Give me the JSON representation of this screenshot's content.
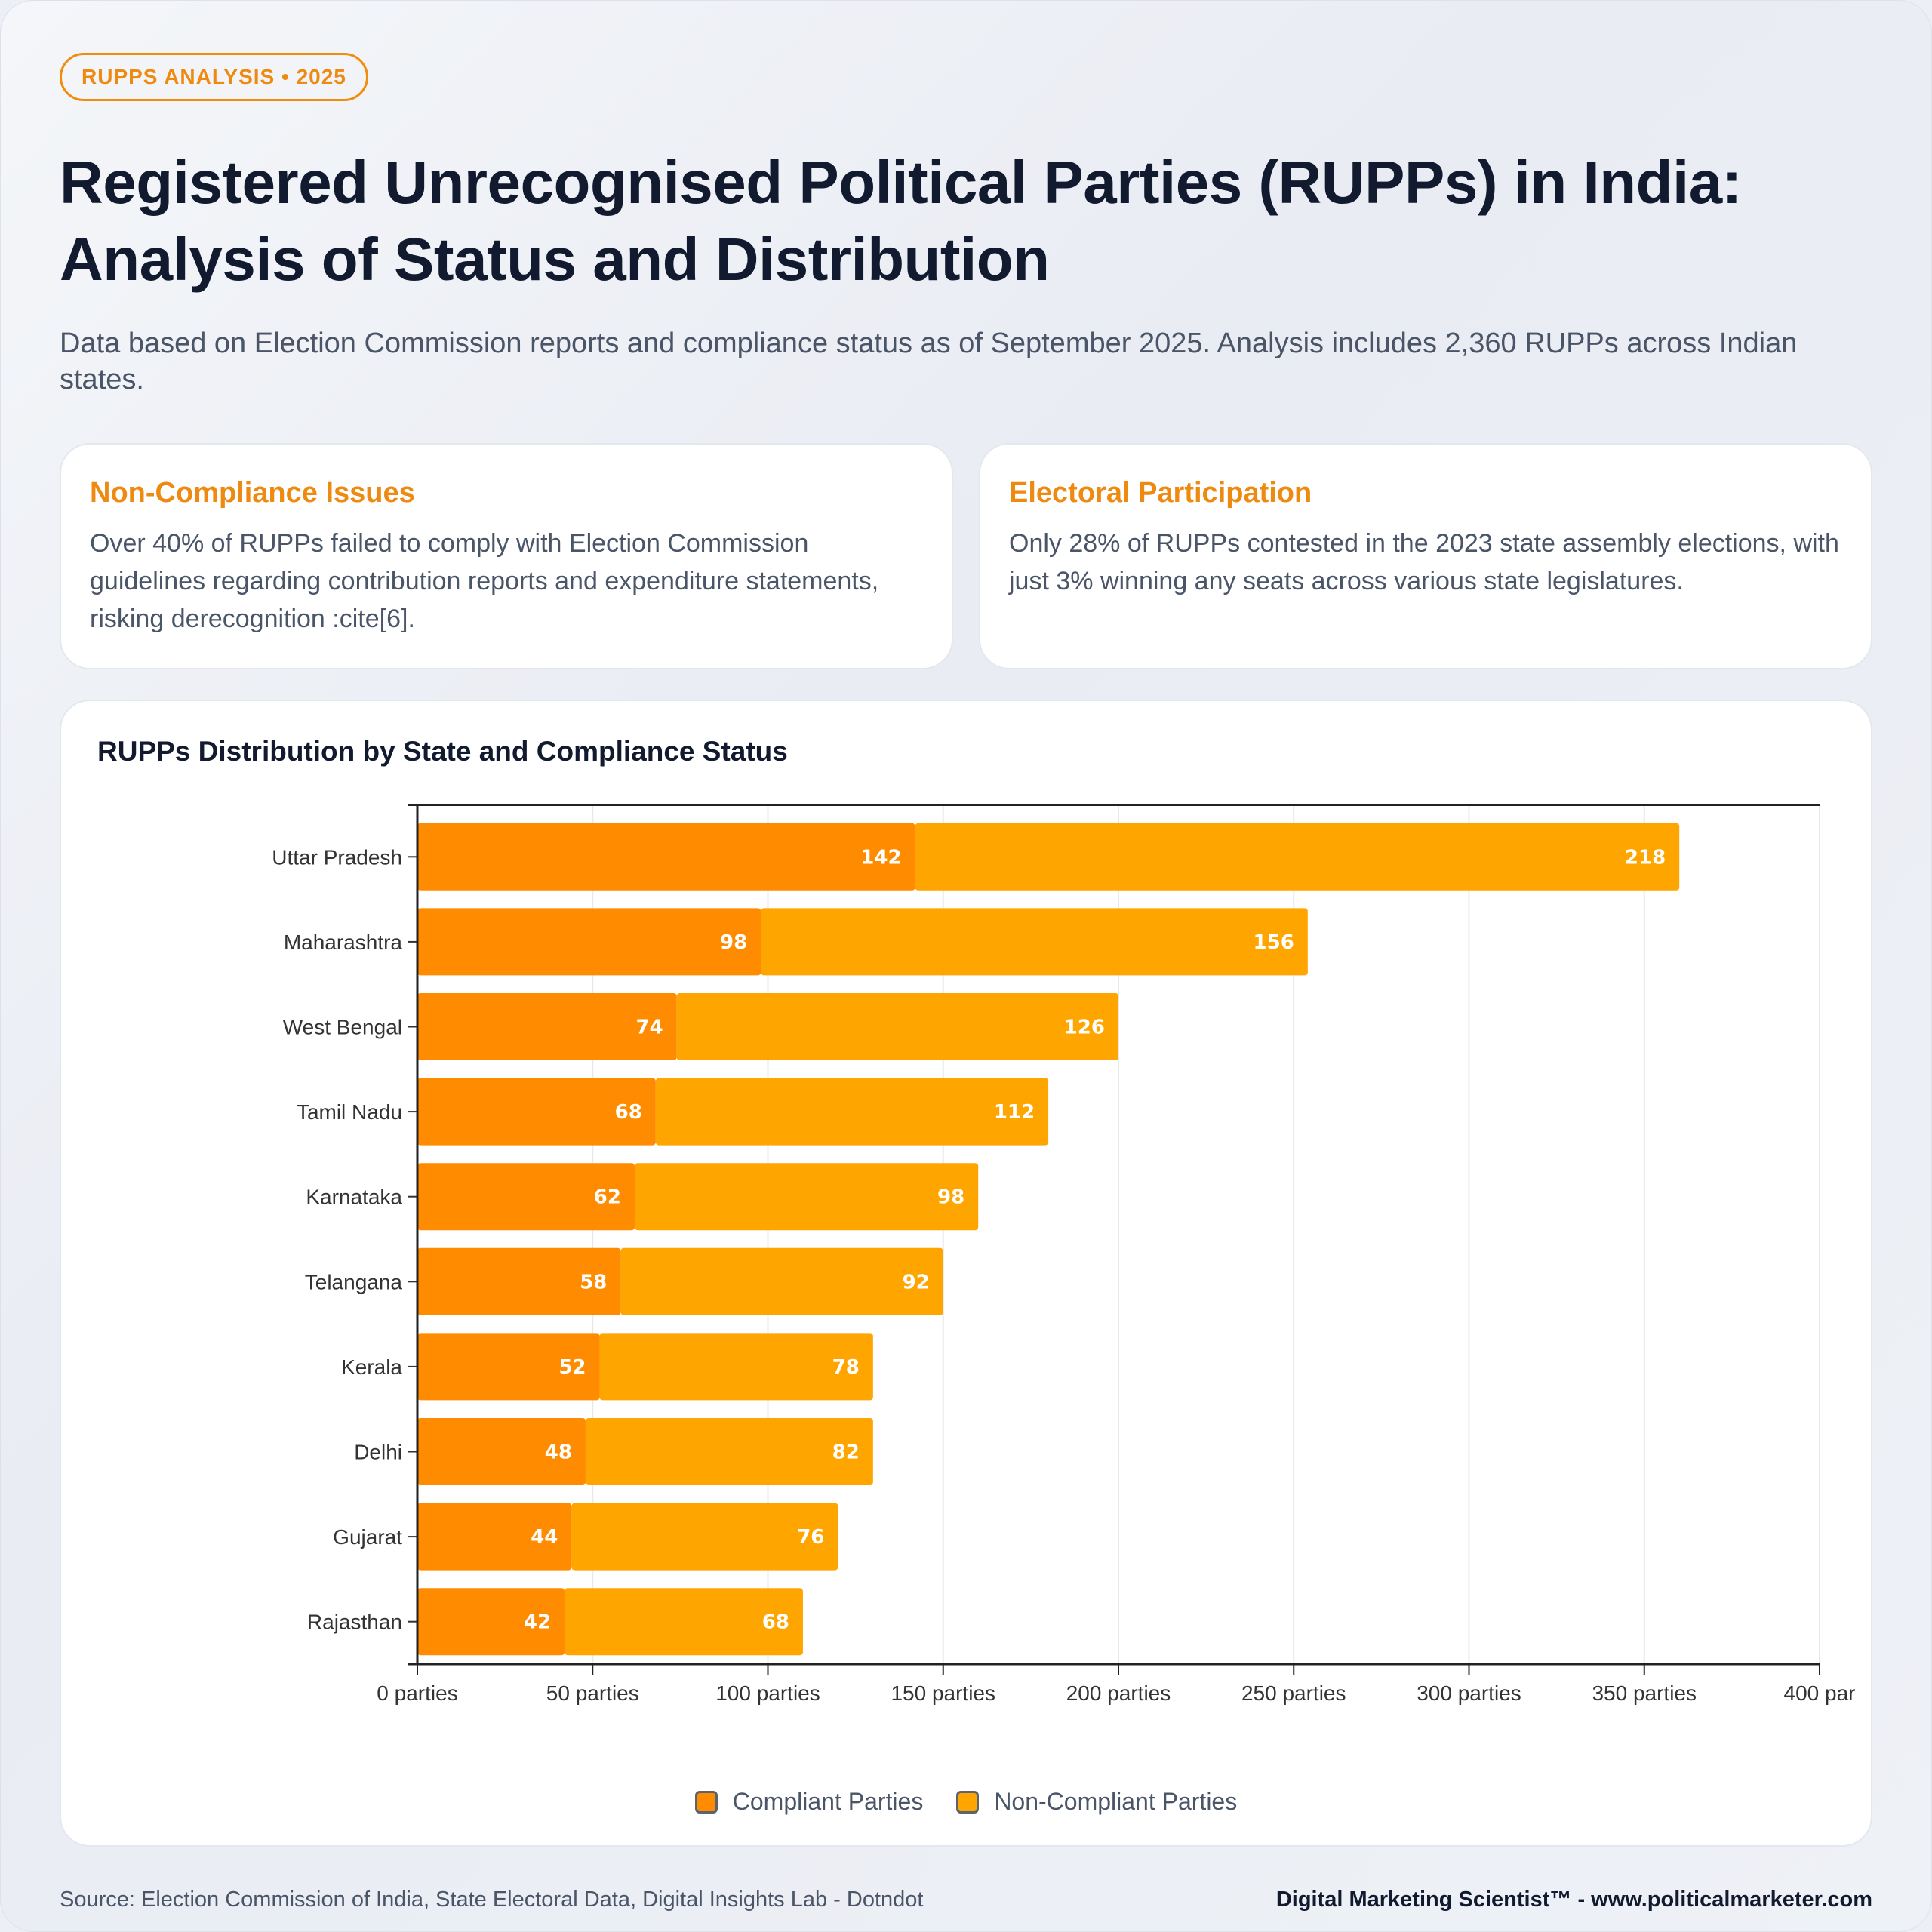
{
  "header": {
    "badge": "RUPPS ANALYSIS • 2025",
    "title": "Registered Unrecognised Political Parties (RUPPs) in India: Analysis of Status and Distribution",
    "subtitle": "Data based on Election Commission reports and compliance status as of September 2025. Analysis includes 2,360 RUPPs across Indian states."
  },
  "cards": [
    {
      "title": "Non-Compliance Issues",
      "text": "Over 40% of RUPPs failed to comply with Election Commission guidelines regarding contribution reports and expenditure statements, risking derecognition :cite[6]."
    },
    {
      "title": "Electoral Participation",
      "text": "Only 28% of RUPPs contested in the 2023 state assembly elections, with just 3% winning any seats across various state legislatures."
    }
  ],
  "chart_data": {
    "type": "bar",
    "orientation": "horizontal",
    "stacked": true,
    "title": "RUPPs Distribution by State and Compliance Status",
    "categories": [
      "Uttar Pradesh",
      "Maharashtra",
      "West Bengal",
      "Tamil Nadu",
      "Karnataka",
      "Telangana",
      "Kerala",
      "Delhi",
      "Gujarat",
      "Rajasthan"
    ],
    "series": [
      {
        "name": "Compliant Parties",
        "color": "#ff8c00",
        "values": [
          142,
          98,
          74,
          68,
          62,
          58,
          52,
          48,
          44,
          42
        ]
      },
      {
        "name": "Non-Compliant Parties",
        "color": "#ffa500",
        "values": [
          218,
          156,
          126,
          112,
          98,
          92,
          78,
          82,
          76,
          68
        ]
      }
    ],
    "xlim": [
      0,
      400
    ],
    "x_ticks": [
      0,
      50,
      100,
      150,
      200,
      250,
      300,
      350,
      400
    ],
    "x_tick_labels": [
      "0 parties",
      "50 parties",
      "100 parties",
      "150 parties",
      "200 parties",
      "250 parties",
      "300 parties",
      "350 parties",
      "400 par"
    ],
    "grid": true,
    "legend_position": "bottom"
  },
  "footer": {
    "source": "Source: Election Commission of India, State Electoral Data, Digital Insights Lab - Dotndot",
    "brand": "Digital Marketing Scientist™ - www.politicalmarketer.com"
  }
}
